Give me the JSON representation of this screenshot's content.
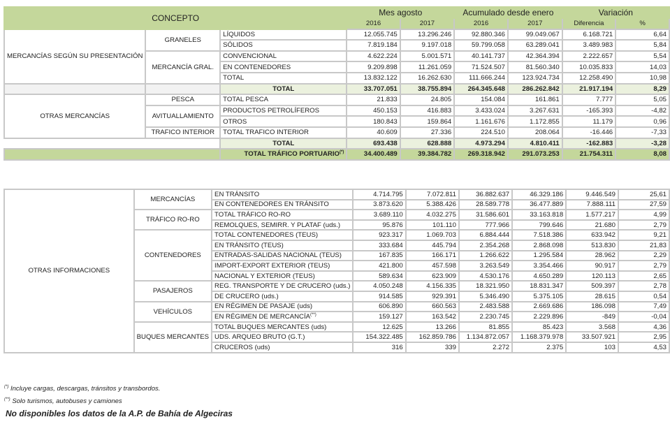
{
  "header": {
    "concepto": "CONCEPTO",
    "groups": [
      "Mes agosto",
      "Acumulado desde enero",
      "Variación"
    ],
    "subcols": [
      "2016",
      "2017",
      "2016",
      "2017",
      "Diferencia",
      "%"
    ]
  },
  "table1": [
    {
      "type": "section",
      "label": "MERCANCÍAS SEGÚN SU PRESENTACIÓN",
      "groups": [
        {
          "label": "GRANELES",
          "rows": [
            {
              "label": "LÍQUIDOS",
              "values": [
                "12.055.745",
                "13.296.246",
                "92.880.346",
                "99.049.067",
                "6.168.721",
                "6,64"
              ]
            },
            {
              "label": "SÓLIDOS",
              "values": [
                "7.819.184",
                "9.197.018",
                "59.799.058",
                "63.289.041",
                "3.489.983",
                "5,84"
              ]
            }
          ]
        },
        {
          "label": "MERCANCÍA GRAL.",
          "rows": [
            {
              "label": "CONVENCIONAL",
              "values": [
                "4.622.224",
                "5.001.571",
                "40.141.737",
                "42.364.394",
                "2.222.657",
                "5,54"
              ]
            },
            {
              "label": "EN CONTENEDORES",
              "values": [
                "9.209.898",
                "11.261.059",
                "71.524.507",
                "81.560.340",
                "10.035.833",
                "14,03"
              ]
            },
            {
              "label": "TOTAL",
              "values": [
                "13.832.122",
                "16.262.630",
                "111.666.244",
                "123.924.734",
                "12.258.490",
                "10,98"
              ]
            }
          ]
        }
      ]
    },
    {
      "type": "total",
      "variant": "gray",
      "label": "TOTAL",
      "values": [
        "33.707.051",
        "38.755.894",
        "264.345.648",
        "286.262.842",
        "21.917.194",
        "8,29"
      ]
    },
    {
      "type": "section",
      "label": "OTRAS MERCANCÍAS",
      "groups": [
        {
          "label": "PESCA",
          "rows": [
            {
              "label": "TOTAL PESCA",
              "values": [
                "21.833",
                "24.805",
                "154.084",
                "161.861",
                "7.777",
                "5,05"
              ]
            }
          ]
        },
        {
          "label": "AVITUALLAMIENTO",
          "rows": [
            {
              "label": "PRODUCTOS PETROLÍFEROS",
              "values": [
                "450.153",
                "416.883",
                "3.433.024",
                "3.267.631",
                "-165.393",
                "-4,82"
              ]
            },
            {
              "label": "OTROS",
              "values": [
                "180.843",
                "159.864",
                "1.161.676",
                "1.172.855",
                "11.179",
                "0,96"
              ]
            }
          ]
        },
        {
          "label": "TRAFICO INTERIOR",
          "rows": [
            {
              "label": "TOTAL TRAFICO INTERIOR",
              "values": [
                "40.609",
                "27.336",
                "224.510",
                "208.064",
                "-16.446",
                "-7,33"
              ]
            }
          ]
        }
      ]
    },
    {
      "type": "total",
      "variant": "blank",
      "label": "TOTAL",
      "values": [
        "693.438",
        "628.888",
        "4.973.294",
        "4.810.411",
        "-162.883",
        "-3,28"
      ]
    },
    {
      "type": "grand",
      "label": "TOTAL TRÁFICO PORTUARIO",
      "sup": "(*)",
      "values": [
        "34.400.489",
        "39.384.782",
        "269.318.942",
        "291.073.253",
        "21.754.311",
        "8,08"
      ]
    }
  ],
  "table2": [
    {
      "type": "section",
      "label": "OTRAS INFORMACIONES",
      "groups": [
        {
          "label": "MERCANCÍAS",
          "rows": [
            {
              "label": "EN TRÁNSITO",
              "values": [
                "4.714.795",
                "7.072.811",
                "36.882.637",
                "46.329.186",
                "9.446.549",
                "25,61"
              ]
            },
            {
              "label": "EN CONTENEDORES EN TRÁNSITO",
              "values": [
                "3.873.620",
                "5.388.426",
                "28.589.778",
                "36.477.889",
                "7.888.111",
                "27,59"
              ]
            }
          ]
        },
        {
          "label": "TRÁFICO RO-RO",
          "rows": [
            {
              "label": "TOTAL TRÁFICO RO-RO",
              "values": [
                "3.689.110",
                "4.032.275",
                "31.586.601",
                "33.163.818",
                "1.577.217",
                "4,99"
              ]
            },
            {
              "label": "REMOLQUES, SEMIRR. Y PLATAF (uds.)",
              "values": [
                "95.876",
                "101.110",
                "777.966",
                "799.646",
                "21.680",
                "2,79"
              ]
            }
          ]
        },
        {
          "label": "CONTENEDORES",
          "rows": [
            {
              "label": "TOTAL CONTENEDORES (TEUS)",
              "values": [
                "923.317",
                "1.069.703",
                "6.884.444",
                "7.518.386",
                "633.942",
                "9,21"
              ]
            },
            {
              "label": "EN TRÁNSITO (TEUS)",
              "values": [
                "333.684",
                "445.794",
                "2.354.268",
                "2.868.098",
                "513.830",
                "21,83"
              ]
            },
            {
              "label": "ENTRADAS-SALIDAS NACIONAL (TEUS)",
              "values": [
                "167.835",
                "166.171",
                "1.266.622",
                "1.295.584",
                "28.962",
                "2,29"
              ]
            },
            {
              "label": "IMPORT-EXPORT EXTERIOR (TEUS)",
              "values": [
                "421.800",
                "457.598",
                "3.263.549",
                "3.354.466",
                "90.917",
                "2,79"
              ]
            },
            {
              "label": "NACIONAL Y EXTERIOR (TEUS)",
              "values": [
                "589.634",
                "623.909",
                "4.530.176",
                "4.650.289",
                "120.113",
                "2,65"
              ]
            }
          ]
        },
        {
          "label": "PASAJEROS",
          "rows": [
            {
              "label": "REG. TRANSPORTE Y DE CRUCERO (uds.)",
              "values": [
                "4.050.248",
                "4.156.335",
                "18.321.950",
                "18.831.347",
                "509.397",
                "2,78"
              ]
            },
            {
              "label": "DE CRUCERO (uds.)",
              "values": [
                "914.585",
                "929.391",
                "5.346.490",
                "5.375.105",
                "28.615",
                "0,54"
              ]
            }
          ]
        },
        {
          "label": "VEHÍCULOS",
          "rows": [
            {
              "label": "EN RÉGIMEN DE PASAJE (uds)",
              "values": [
                "606.890",
                "660.563",
                "2.483.588",
                "2.669.686",
                "186.098",
                "7,49"
              ]
            },
            {
              "label": "EN RÉGIMEN DE MERCANCÍA",
              "sup": "(**)",
              "values": [
                "159.127",
                "163.542",
                "2.230.745",
                "2.229.896",
                "-849",
                "-0,04"
              ]
            }
          ]
        },
        {
          "label": "BUQUES MERCANTES",
          "rows": [
            {
              "label": "TOTAL BUQUES MERCANTES (uds)",
              "values": [
                "12.625",
                "13.266",
                "81.855",
                "85.423",
                "3.568",
                "4,36"
              ]
            },
            {
              "label": "UDS. ARQUEO BRUTO (G.T.)",
              "values": [
                "154.322.485",
                "162.859.786",
                "1.134.872.057",
                "1.168.379.978",
                "33.507.921",
                "2,95"
              ]
            },
            {
              "label": "CRUCEROS (uds)",
              "values": [
                "316",
                "339",
                "2.272",
                "2.375",
                "103",
                "4,53"
              ]
            }
          ]
        }
      ]
    }
  ],
  "footnotes": [
    {
      "mark": "(*)",
      "text": "Incluye cargas, descargas, tránsitos y transbordos."
    },
    {
      "mark": "(**)",
      "text": "Solo turismos, autobuses y camiones"
    }
  ],
  "note": "No disponibles los datos de la A.P. de Bahía de Algeciras"
}
